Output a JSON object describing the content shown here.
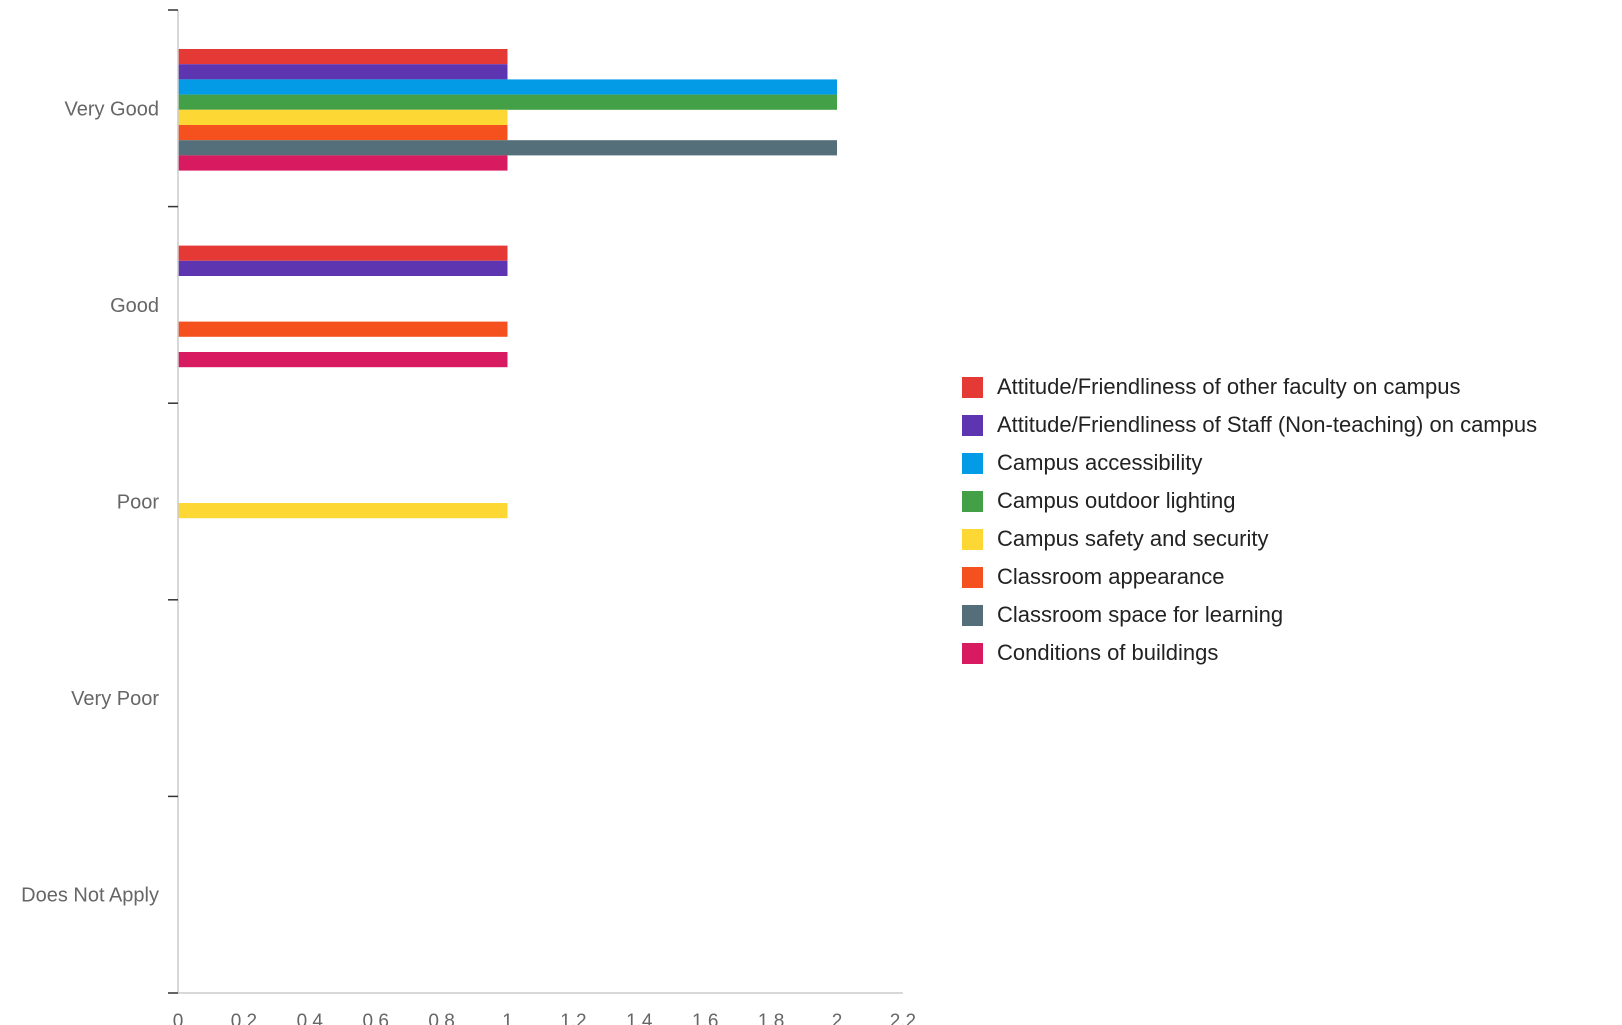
{
  "chart_data": {
    "type": "bar",
    "orientation": "horizontal",
    "categories": [
      "Very Good",
      "Good",
      "Poor",
      "Very Poor",
      "Does Not Apply"
    ],
    "series": [
      {
        "name": "Attitude/Friendliness of other faculty on campus",
        "color": "#e53935",
        "values": [
          1,
          1,
          0,
          0,
          0
        ]
      },
      {
        "name": "Attitude/Friendliness of Staff (Non-teaching) on campus",
        "color": "#5e35b1",
        "values": [
          1,
          1,
          0,
          0,
          0
        ]
      },
      {
        "name": "Campus accessibility",
        "color": "#039be5",
        "values": [
          2,
          0,
          0,
          0,
          0
        ]
      },
      {
        "name": "Campus outdoor lighting",
        "color": "#43a047",
        "values": [
          2,
          0,
          0,
          0,
          0
        ]
      },
      {
        "name": "Campus safety and security",
        "color": "#fdd835",
        "values": [
          1,
          0,
          1,
          0,
          0
        ]
      },
      {
        "name": "Classroom appearance",
        "color": "#f4511e",
        "values": [
          1,
          1,
          0,
          0,
          0
        ]
      },
      {
        "name": "Classroom space for learning",
        "color": "#546e7a",
        "values": [
          2,
          0,
          0,
          0,
          0
        ]
      },
      {
        "name": "Conditions of buildings",
        "color": "#d81b60",
        "values": [
          1,
          1,
          0,
          0,
          0
        ]
      }
    ],
    "xlim": [
      0,
      2.2
    ],
    "xticks": [
      "0",
      "0.2",
      "0.4",
      "0.6",
      "0.8",
      "1",
      "1.2",
      "1.4",
      "1.6",
      "1.8",
      "2",
      "2.2"
    ],
    "legend_position": "right"
  }
}
